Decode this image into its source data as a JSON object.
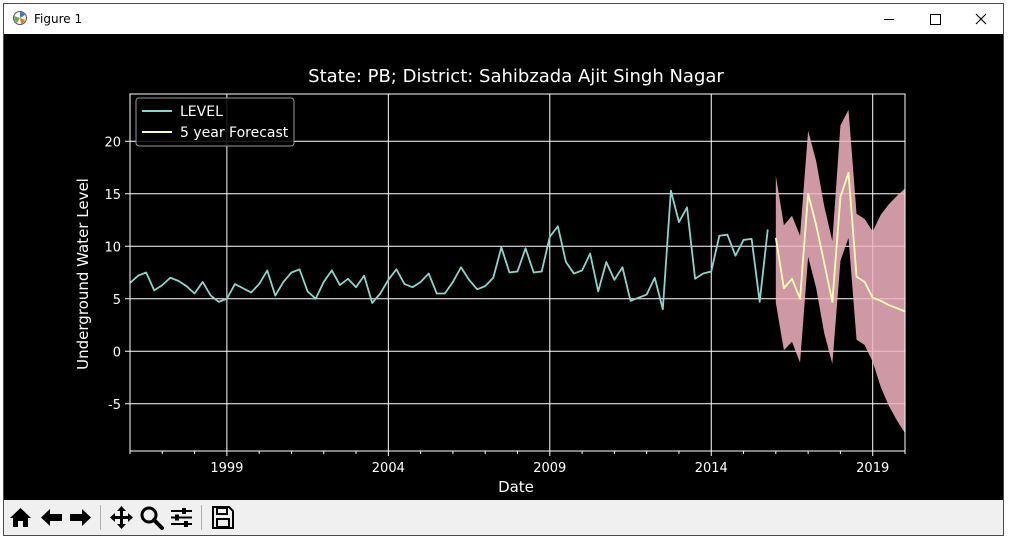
{
  "window": {
    "title": "Figure 1",
    "controls": {
      "minimize": "minimize-icon",
      "maximize": "maximize-icon",
      "close": "close-icon"
    }
  },
  "toolbar": {
    "buttons": [
      {
        "name": "home",
        "icon": "home-icon"
      },
      {
        "name": "back",
        "icon": "arrow-left-icon"
      },
      {
        "name": "forward",
        "icon": "arrow-right-icon"
      },
      {
        "name": "pan",
        "icon": "move-icon"
      },
      {
        "name": "zoom",
        "icon": "magnifier-icon"
      },
      {
        "name": "configure-subplots",
        "icon": "sliders-icon"
      },
      {
        "name": "save",
        "icon": "floppy-icon"
      }
    ]
  },
  "colors": {
    "background": "#000000",
    "level_line": "#8dd3c7",
    "forecast_line": "#ffffb3",
    "confidence_band": "#f2b3c1",
    "grid": "#ffffff"
  },
  "chart_data": {
    "type": "line",
    "title": "State: PB;  District: Sahibzada Ajit Singh Nagar",
    "xlabel": "Date",
    "ylabel": "Underground Water Level",
    "xlim": [
      1996.0,
      2020.0
    ],
    "ylim": [
      -9.5,
      24.5
    ],
    "xticks": [
      1999,
      2004,
      2009,
      2014,
      2019
    ],
    "xtick_labels": [
      "1999",
      "2004",
      "2009",
      "2014",
      "2019"
    ],
    "yticks": [
      -5,
      0,
      5,
      10,
      15,
      20
    ],
    "ytick_labels": [
      "-5",
      "0",
      "5",
      "10",
      "15",
      "20"
    ],
    "grid": true,
    "legend_position": "top-left",
    "series": [
      {
        "name": "LEVEL",
        "color": "#8dd3c7",
        "x": [
          1996.0,
          1996.25,
          1996.5,
          1996.75,
          1997.0,
          1997.25,
          1997.5,
          1997.75,
          1998.0,
          1998.25,
          1998.5,
          1998.75,
          1999.0,
          1999.25,
          1999.5,
          1999.75,
          2000.0,
          2000.25,
          2000.5,
          2000.75,
          2001.0,
          2001.25,
          2001.5,
          2001.75,
          2002.0,
          2002.25,
          2002.5,
          2002.75,
          2003.0,
          2003.25,
          2003.5,
          2003.75,
          2004.0,
          2004.25,
          2004.5,
          2004.75,
          2005.0,
          2005.25,
          2005.5,
          2005.75,
          2006.0,
          2006.25,
          2006.5,
          2006.75,
          2007.0,
          2007.25,
          2007.5,
          2007.75,
          2008.0,
          2008.25,
          2008.5,
          2008.75,
          2009.0,
          2009.25,
          2009.5,
          2009.75,
          2010.0,
          2010.25,
          2010.5,
          2010.75,
          2011.0,
          2011.25,
          2011.5,
          2011.75,
          2012.0,
          2012.25,
          2012.5,
          2012.75,
          2013.0,
          2013.25,
          2013.5,
          2013.75,
          2014.0,
          2014.25,
          2014.5,
          2014.75,
          2015.0,
          2015.25,
          2015.5,
          2015.75
        ],
        "y": [
          6.5,
          7.2,
          7.5,
          5.8,
          6.3,
          7.0,
          6.7,
          6.2,
          5.5,
          6.6,
          5.3,
          4.7,
          5.0,
          6.4,
          6.0,
          5.6,
          6.4,
          7.7,
          5.3,
          6.6,
          7.5,
          7.8,
          5.7,
          5.0,
          6.6,
          7.7,
          6.3,
          6.9,
          6.1,
          7.2,
          4.6,
          5.5,
          6.8,
          7.8,
          6.4,
          6.1,
          6.6,
          7.4,
          5.5,
          5.5,
          6.6,
          8.0,
          6.8,
          5.9,
          6.2,
          7.0,
          9.9,
          7.5,
          7.6,
          9.8,
          7.5,
          7.6,
          10.9,
          11.9,
          8.5,
          7.4,
          7.7,
          9.3,
          5.7,
          8.5,
          6.8,
          8.0,
          4.8,
          5.1,
          5.4,
          7.0,
          4.0,
          15.3,
          12.3,
          13.7,
          6.9,
          7.4,
          7.6,
          11.0,
          11.1,
          9.1,
          10.6,
          10.7,
          4.7,
          11.6
        ]
      },
      {
        "name": "5 year Forecast",
        "color": "#ffffb3",
        "x": [
          2016.0,
          2016.25,
          2016.5,
          2016.75,
          2017.0,
          2017.25,
          2017.5,
          2017.75,
          2018.0,
          2018.25,
          2018.5,
          2018.75,
          2019.0,
          2019.25,
          2019.5,
          2019.75,
          2020.0
        ],
        "y": [
          10.8,
          6.0,
          6.9,
          5.0,
          15.0,
          12.0,
          8.4,
          4.7,
          14.7,
          17.0,
          7.1,
          6.6,
          5.1,
          4.8,
          4.4,
          4.1,
          3.8
        ]
      }
    ],
    "confidence_band": {
      "x": [
        2016.0,
        2016.25,
        2016.5,
        2016.75,
        2017.0,
        2017.25,
        2017.5,
        2017.75,
        2018.0,
        2018.25,
        2018.5,
        2018.75,
        2019.0,
        2019.25,
        2019.5,
        2019.75,
        2020.0
      ],
      "upper": [
        16.7,
        12.0,
        12.9,
        11.0,
        21.0,
        18.1,
        13.8,
        10.5,
        21.5,
        23.0,
        13.1,
        12.6,
        11.4,
        13.0,
        14.0,
        14.8,
        15.5
      ],
      "lower": [
        4.6,
        0.1,
        0.9,
        -1.1,
        9.0,
        6.0,
        1.7,
        -1.2,
        8.6,
        10.8,
        1.1,
        0.6,
        -1.0,
        -3.4,
        -5.2,
        -6.6,
        -7.8
      ]
    }
  }
}
